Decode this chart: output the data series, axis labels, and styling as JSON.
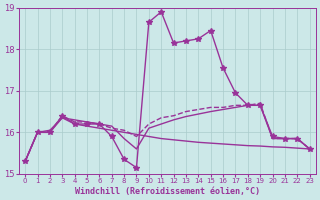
{
  "background_color": "#cce8e8",
  "grid_color": "#aacccc",
  "line_color": "#993399",
  "xlabel": "Windchill (Refroidissement éolien,°C)",
  "xlabel_color": "#993399",
  "tick_color": "#993399",
  "ylim": [
    15,
    19
  ],
  "xlim": [
    0,
    23
  ],
  "yticks": [
    15,
    16,
    17,
    18,
    19
  ],
  "xticks": [
    0,
    1,
    2,
    3,
    4,
    5,
    6,
    7,
    8,
    9,
    10,
    11,
    12,
    13,
    14,
    15,
    16,
    17,
    18,
    19,
    20,
    21,
    22,
    23
  ],
  "series": [
    {
      "x": [
        0,
        1,
        2,
        3,
        4,
        5,
        6,
        7,
        8,
        9,
        10,
        11,
        12,
        13,
        14,
        15,
        16,
        17,
        18,
        19,
        20,
        21,
        22,
        23
      ],
      "y": [
        15.3,
        16.0,
        16.0,
        16.4,
        16.2,
        16.2,
        16.2,
        15.9,
        15.35,
        15.15,
        18.65,
        18.9,
        18.15,
        18.2,
        18.25,
        18.45,
        17.55,
        16.95,
        16.65,
        16.65,
        15.9,
        15.85,
        15.85,
        15.6
      ],
      "style": "-",
      "marker": "*",
      "markersize": 4,
      "linewidth": 1.0
    },
    {
      "x": [
        0,
        1,
        2,
        3,
        4,
        5,
        6,
        7,
        8,
        9,
        10,
        11,
        12,
        13,
        14,
        15,
        16,
        17,
        18,
        19,
        20,
        21,
        22,
        23
      ],
      "y": [
        15.3,
        16.0,
        16.0,
        16.4,
        16.25,
        16.25,
        16.2,
        16.1,
        16.05,
        15.9,
        16.2,
        16.35,
        16.4,
        16.5,
        16.55,
        16.6,
        16.6,
        16.65,
        16.65,
        16.7,
        15.85,
        15.85,
        15.85,
        15.6
      ],
      "style": "--",
      "marker": null,
      "markersize": 0,
      "linewidth": 1.0
    },
    {
      "x": [
        0,
        1,
        2,
        3,
        4,
        5,
        6,
        7,
        8,
        9,
        10,
        11,
        12,
        13,
        14,
        15,
        16,
        17,
        18,
        19,
        20,
        21,
        22,
        23
      ],
      "y": [
        15.3,
        16.0,
        16.0,
        16.35,
        16.2,
        16.15,
        16.1,
        16.05,
        16.0,
        15.95,
        15.9,
        15.85,
        15.82,
        15.79,
        15.76,
        15.74,
        15.72,
        15.7,
        15.68,
        15.67,
        15.65,
        15.64,
        15.62,
        15.6
      ],
      "style": "-",
      "marker": null,
      "markersize": 0,
      "linewidth": 1.0
    },
    {
      "x": [
        0,
        1,
        2,
        3,
        4,
        5,
        6,
        7,
        8,
        9,
        10,
        11,
        12,
        13,
        14,
        15,
        16,
        17,
        18,
        19,
        20,
        21,
        22,
        23
      ],
      "y": [
        15.3,
        16.0,
        16.05,
        16.35,
        16.3,
        16.25,
        16.2,
        16.15,
        15.85,
        15.6,
        16.1,
        16.2,
        16.3,
        16.38,
        16.44,
        16.5,
        16.55,
        16.6,
        16.65,
        16.65,
        15.85,
        15.85,
        15.85,
        15.6
      ],
      "style": "-",
      "marker": null,
      "markersize": 0,
      "linewidth": 1.0
    }
  ]
}
